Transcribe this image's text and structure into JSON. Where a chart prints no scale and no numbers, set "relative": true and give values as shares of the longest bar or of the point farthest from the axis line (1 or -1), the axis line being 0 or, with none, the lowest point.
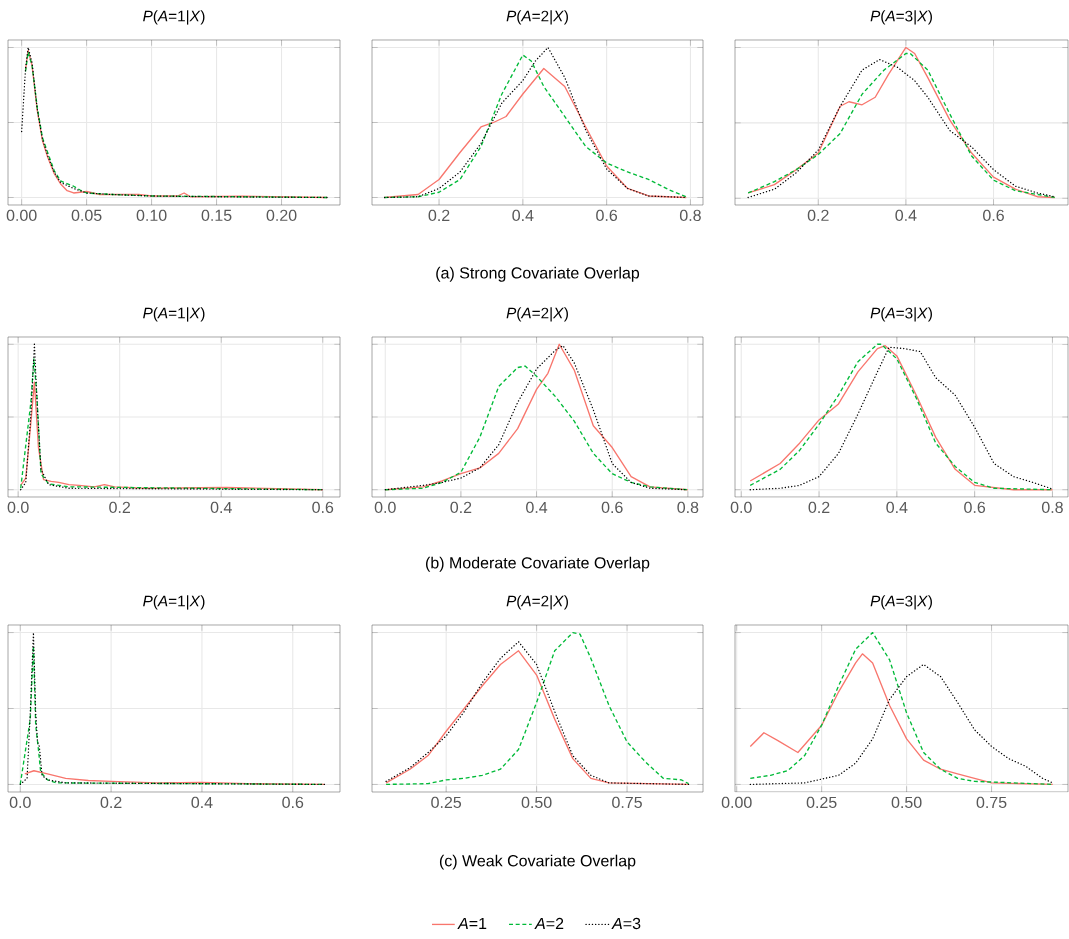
{
  "chart_data": [
    {
      "type": "line",
      "title": "*P*(*A*=1|*X*)",
      "relative": true,
      "grid": true,
      "xlim": [
        -0.0105,
        0.245
      ],
      "xticks": [
        {
          "value": 0,
          "label": "0.00"
        },
        {
          "value": 0.05,
          "label": "0.05"
        },
        {
          "value": 0.1,
          "label": "0.10"
        },
        {
          "value": 0.15,
          "label": "0.15"
        },
        {
          "value": 0.2,
          "label": "0.20"
        }
      ],
      "series": [
        {
          "color": "#f8766d",
          "line_style": "solid",
          "x": [
            0.003,
            0.005,
            0.008,
            0.012,
            0.016,
            0.02,
            0.025,
            0.03,
            0.035,
            0.04,
            0.05,
            0.06,
            0.07,
            0.09,
            0.1,
            0.12,
            0.125,
            0.13,
            0.17,
            0.235
          ],
          "values": [
            0.85,
            0.98,
            0.88,
            0.58,
            0.38,
            0.27,
            0.16,
            0.09,
            0.045,
            0.03,
            0.04,
            0.02,
            0.02,
            0.02,
            0.01,
            0.01,
            0.03,
            0.005,
            0.008,
            0
          ]
        },
        {
          "color": "#00ba38",
          "line_style": "dashed",
          "x": [
            0.003,
            0.005,
            0.008,
            0.012,
            0.016,
            0.02,
            0.025,
            0.03,
            0.04,
            0.045,
            0.05,
            0.07,
            0.1,
            0.235
          ],
          "values": [
            0.84,
            0.97,
            0.88,
            0.6,
            0.4,
            0.3,
            0.18,
            0.11,
            0.075,
            0.05,
            0.03,
            0.02,
            0.01,
            0
          ]
        },
        {
          "color": "#000000",
          "line_style": "dotted",
          "x": [
            0,
            0.003,
            0.005,
            0.008,
            0.012,
            0.016,
            0.02,
            0.025,
            0.03,
            0.04,
            0.05,
            0.07,
            0.1,
            0.15,
            0.235
          ],
          "values": [
            0.44,
            0.86,
            1.0,
            0.9,
            0.59,
            0.39,
            0.28,
            0.17,
            0.1,
            0.06,
            0.03,
            0.02,
            0.01,
            0.005,
            0
          ]
        }
      ]
    },
    {
      "type": "line",
      "title": "*P*(*A*=2|*X*)",
      "relative": true,
      "grid": true,
      "xlim": [
        0.04,
        0.83
      ],
      "xticks": [
        {
          "value": 0.2,
          "label": "0.2"
        },
        {
          "value": 0.4,
          "label": "0.4"
        },
        {
          "value": 0.6,
          "label": "0.6"
        },
        {
          "value": 0.8,
          "label": "0.8"
        }
      ],
      "annotations": [
        "(a) Strong Covariate Overlap"
      ],
      "series": [
        {
          "color": "#f8766d",
          "line_style": "solid",
          "x": [
            0.07,
            0.15,
            0.2,
            0.25,
            0.3,
            0.33,
            0.36,
            0.4,
            0.45,
            0.5,
            0.55,
            0.6,
            0.65,
            0.7,
            0.79
          ],
          "values": [
            0,
            0.02,
            0.12,
            0.3,
            0.47,
            0.5,
            0.54,
            0.69,
            0.86,
            0.74,
            0.47,
            0.21,
            0.06,
            0.01,
            0
          ]
        },
        {
          "color": "#00ba38",
          "line_style": "dashed",
          "x": [
            0.07,
            0.15,
            0.2,
            0.25,
            0.3,
            0.35,
            0.4,
            0.42,
            0.45,
            0.5,
            0.55,
            0.6,
            0.65,
            0.7,
            0.75,
            0.79
          ],
          "values": [
            0,
            0.005,
            0.035,
            0.12,
            0.34,
            0.69,
            0.95,
            0.91,
            0.74,
            0.54,
            0.34,
            0.23,
            0.17,
            0.12,
            0.05,
            0.005
          ]
        },
        {
          "color": "#000000",
          "line_style": "dotted",
          "x": [
            0.07,
            0.15,
            0.2,
            0.25,
            0.3,
            0.35,
            0.4,
            0.43,
            0.46,
            0.5,
            0.55,
            0.6,
            0.65,
            0.7,
            0.79
          ],
          "values": [
            0,
            0.005,
            0.06,
            0.17,
            0.36,
            0.63,
            0.78,
            0.91,
            1.0,
            0.8,
            0.45,
            0.19,
            0.06,
            0.01,
            0
          ]
        }
      ]
    },
    {
      "type": "line",
      "title": "*P*(*A*=3|*X*)",
      "relative": true,
      "grid": true,
      "xlim": [
        0.01,
        0.77
      ],
      "xticks": [
        {
          "value": 0.2,
          "label": "0.2"
        },
        {
          "value": 0.4,
          "label": "0.4"
        },
        {
          "value": 0.6,
          "label": "0.6"
        }
      ],
      "series": [
        {
          "color": "#f8766d",
          "line_style": "solid",
          "x": [
            0.04,
            0.1,
            0.15,
            0.2,
            0.25,
            0.27,
            0.3,
            0.33,
            0.36,
            0.4,
            0.42,
            0.45,
            0.5,
            0.55,
            0.6,
            0.65,
            0.7,
            0.74
          ],
          "values": [
            0.035,
            0.09,
            0.19,
            0.3,
            0.61,
            0.64,
            0.62,
            0.67,
            0.82,
            1.0,
            0.96,
            0.8,
            0.52,
            0.3,
            0.14,
            0.06,
            0.01,
            0.005
          ]
        },
        {
          "color": "#00ba38",
          "line_style": "dashed",
          "x": [
            0.04,
            0.1,
            0.15,
            0.2,
            0.25,
            0.3,
            0.35,
            0.4,
            0.41,
            0.45,
            0.5,
            0.55,
            0.6,
            0.65,
            0.74
          ],
          "values": [
            0.035,
            0.11,
            0.19,
            0.29,
            0.43,
            0.69,
            0.85,
            0.96,
            0.96,
            0.85,
            0.56,
            0.28,
            0.12,
            0.05,
            0.005
          ]
        },
        {
          "color": "#000000",
          "line_style": "dotted",
          "x": [
            0.04,
            0.1,
            0.15,
            0.2,
            0.25,
            0.3,
            0.34,
            0.38,
            0.42,
            0.45,
            0.5,
            0.55,
            0.6,
            0.65,
            0.7,
            0.74
          ],
          "values": [
            0.005,
            0.06,
            0.17,
            0.32,
            0.61,
            0.85,
            0.92,
            0.87,
            0.78,
            0.67,
            0.45,
            0.34,
            0.19,
            0.08,
            0.035,
            0.01
          ]
        }
      ]
    },
    {
      "type": "line",
      "title": "*P*(*A*=1|*X*)",
      "relative": true,
      "grid": true,
      "xlim": [
        -0.02,
        0.634
      ],
      "xticks": [
        {
          "value": 0,
          "label": "0.0"
        },
        {
          "value": 0.2,
          "label": "0.2"
        },
        {
          "value": 0.4,
          "label": "0.4"
        },
        {
          "value": 0.6,
          "label": "0.6"
        }
      ],
      "series": [
        {
          "color": "#f8766d",
          "line_style": "solid",
          "x": [
            0.005,
            0.015,
            0.025,
            0.032,
            0.04,
            0.05,
            0.065,
            0.08,
            0.1,
            0.12,
            0.15,
            0.17,
            0.19,
            0.25,
            0.41,
            0.6
          ],
          "values": [
            0.03,
            0.08,
            0.46,
            0.74,
            0.29,
            0.07,
            0.057,
            0.05,
            0.035,
            0.03,
            0.02,
            0.035,
            0.02,
            0.01,
            0.015,
            0
          ]
        },
        {
          "color": "#00ba38",
          "line_style": "dashed",
          "x": [
            0.005,
            0.025,
            0.031,
            0.037,
            0.045,
            0.06,
            0.1,
            0.6
          ],
          "values": [
            0.01,
            0.6,
            0.9,
            0.64,
            0.11,
            0.04,
            0.02,
            0
          ]
        },
        {
          "color": "#000000",
          "line_style": "dotted",
          "x": [
            0.005,
            0.015,
            0.025,
            0.032,
            0.038,
            0.045,
            0.06,
            0.1,
            0.6
          ],
          "values": [
            0,
            0.05,
            0.51,
            1.0,
            0.55,
            0.14,
            0.035,
            0.01,
            0
          ]
        }
      ]
    },
    {
      "type": "line",
      "title": "*P*(*A*=2|*X*)",
      "relative": true,
      "grid": true,
      "xlim": [
        -0.035,
        0.84
      ],
      "xticks": [
        {
          "value": 0,
          "label": "0.0"
        },
        {
          "value": 0.2,
          "label": "0.2"
        },
        {
          "value": 0.4,
          "label": "0.4"
        },
        {
          "value": 0.6,
          "label": "0.6"
        },
        {
          "value": 0.8,
          "label": "0.8"
        }
      ],
      "annotations": [
        "(b) Moderate Covariate Overlap"
      ],
      "series": [
        {
          "color": "#f8766d",
          "line_style": "solid",
          "x": [
            0,
            0.1,
            0.15,
            0.2,
            0.25,
            0.3,
            0.35,
            0.4,
            0.43,
            0.46,
            0.5,
            0.55,
            0.6,
            0.65,
            0.7,
            0.8
          ],
          "values": [
            0,
            0.02,
            0.06,
            0.11,
            0.15,
            0.25,
            0.42,
            0.69,
            0.8,
            1.0,
            0.82,
            0.44,
            0.29,
            0.09,
            0.02,
            0
          ]
        },
        {
          "color": "#00ba38",
          "line_style": "dashed",
          "x": [
            0,
            0.1,
            0.15,
            0.2,
            0.25,
            0.3,
            0.35,
            0.37,
            0.4,
            0.45,
            0.5,
            0.55,
            0.6,
            0.65,
            0.7,
            0.8
          ],
          "values": [
            0,
            0.01,
            0.05,
            0.12,
            0.36,
            0.71,
            0.84,
            0.85,
            0.78,
            0.64,
            0.47,
            0.25,
            0.11,
            0.05,
            0.02,
            0
          ]
        },
        {
          "color": "#000000",
          "line_style": "dotted",
          "x": [
            0,
            0.1,
            0.15,
            0.2,
            0.25,
            0.3,
            0.35,
            0.4,
            0.45,
            0.47,
            0.5,
            0.55,
            0.6,
            0.65,
            0.7,
            0.8
          ],
          "values": [
            0,
            0.03,
            0.05,
            0.08,
            0.15,
            0.31,
            0.6,
            0.83,
            0.96,
            0.99,
            0.87,
            0.55,
            0.18,
            0.05,
            0.01,
            0
          ]
        }
      ]
    },
    {
      "type": "line",
      "title": "*P*(*A*=3|*X*)",
      "relative": true,
      "grid": true,
      "xlim": [
        -0.016,
        0.84
      ],
      "xticks": [
        {
          "value": 0,
          "label": "0.0"
        },
        {
          "value": 0.2,
          "label": "0.2"
        },
        {
          "value": 0.4,
          "label": "0.4"
        },
        {
          "value": 0.6,
          "label": "0.6"
        },
        {
          "value": 0.8,
          "label": "0.8"
        }
      ],
      "series": [
        {
          "color": "#f8766d",
          "line_style": "solid",
          "x": [
            0.023,
            0.1,
            0.15,
            0.2,
            0.25,
            0.3,
            0.35,
            0.37,
            0.4,
            0.45,
            0.5,
            0.55,
            0.6,
            0.7,
            0.8
          ],
          "values": [
            0.06,
            0.18,
            0.32,
            0.48,
            0.59,
            0.81,
            0.97,
            0.99,
            0.92,
            0.65,
            0.36,
            0.14,
            0.03,
            0,
            0
          ]
        },
        {
          "color": "#00ba38",
          "line_style": "dashed",
          "x": [
            0.023,
            0.1,
            0.15,
            0.2,
            0.25,
            0.3,
            0.35,
            0.36,
            0.4,
            0.45,
            0.5,
            0.55,
            0.6,
            0.65,
            0.8
          ],
          "values": [
            0.03,
            0.14,
            0.27,
            0.45,
            0.65,
            0.88,
            1.0,
            1.0,
            0.9,
            0.63,
            0.32,
            0.16,
            0.05,
            0.01,
            0
          ]
        },
        {
          "color": "#000000",
          "line_style": "dotted",
          "x": [
            0.023,
            0.1,
            0.15,
            0.2,
            0.25,
            0.3,
            0.35,
            0.38,
            0.42,
            0.46,
            0.5,
            0.55,
            0.6,
            0.65,
            0.7,
            0.75,
            0.8
          ],
          "values": [
            0,
            0.01,
            0.03,
            0.09,
            0.25,
            0.52,
            0.81,
            0.98,
            0.97,
            0.95,
            0.77,
            0.65,
            0.43,
            0.18,
            0.09,
            0.05,
            0.005
          ]
        }
      ]
    },
    {
      "type": "line",
      "title": "*P*(*A*=1|*X*)",
      "relative": true,
      "grid": true,
      "xlim": [
        -0.027,
        0.704
      ],
      "xticks": [
        {
          "value": 0,
          "label": "0.0"
        },
        {
          "value": 0.2,
          "label": "0.2"
        },
        {
          "value": 0.4,
          "label": "0.4"
        },
        {
          "value": 0.6,
          "label": "0.6"
        }
      ],
      "series": [
        {
          "color": "#f8766d",
          "line_style": "solid",
          "x": [
            0.01,
            0.03,
            0.06,
            0.1,
            0.15,
            0.2,
            0.3,
            0.4,
            0.5,
            0.67
          ],
          "values": [
            0.07,
            0.09,
            0.07,
            0.04,
            0.026,
            0.02,
            0.01,
            0.013,
            0.005,
            0
          ]
        },
        {
          "color": "#00ba38",
          "line_style": "dashed",
          "x": [
            0,
            0.022,
            0.029,
            0.034,
            0.04,
            0.045,
            0.06,
            0.08,
            0.67
          ],
          "values": [
            0,
            0.43,
            0.91,
            0.39,
            0.23,
            0.08,
            0.03,
            0.01,
            0
          ]
        },
        {
          "color": "#000000",
          "line_style": "dotted",
          "x": [
            0,
            0.015,
            0.022,
            0.029,
            0.034,
            0.038,
            0.042,
            0.048,
            0.06,
            0.1,
            0.67
          ],
          "values": [
            0,
            0.04,
            0.47,
            1.0,
            0.47,
            0.28,
            0.25,
            0.06,
            0.03,
            0.01,
            0
          ]
        }
      ]
    },
    {
      "type": "line",
      "title": "*P*(*A*=2|*X*)",
      "relative": true,
      "grid": true,
      "xlim": [
        0.045,
        0.96
      ],
      "legend": "bottom",
      "xticks": [
        {
          "value": 0.25,
          "label": "0.25"
        },
        {
          "value": 0.5,
          "label": "0.50"
        },
        {
          "value": 0.75,
          "label": "0.75"
        }
      ],
      "annotations": [
        "(c) Weak Covariate Overlap"
      ],
      "series": [
        {
          "name": "*A*=1",
          "color": "#f8766d",
          "line_style": "solid",
          "x": [
            0.084,
            0.15,
            0.2,
            0.25,
            0.3,
            0.35,
            0.4,
            0.45,
            0.5,
            0.55,
            0.6,
            0.65,
            0.7,
            0.92
          ],
          "values": [
            0.01,
            0.1,
            0.19,
            0.35,
            0.5,
            0.65,
            0.79,
            0.88,
            0.72,
            0.43,
            0.17,
            0.04,
            0.01,
            0
          ]
        },
        {
          "name": "*A*=2",
          "color": "#00ba38",
          "line_style": "dashed",
          "x": [
            0.084,
            0.2,
            0.25,
            0.3,
            0.35,
            0.4,
            0.45,
            0.5,
            0.55,
            0.6,
            0.62,
            0.65,
            0.7,
            0.75,
            0.8,
            0.85,
            0.9,
            0.92
          ],
          "values": [
            0,
            0.005,
            0.03,
            0.04,
            0.06,
            0.1,
            0.23,
            0.54,
            0.88,
            1.0,
            0.99,
            0.83,
            0.52,
            0.28,
            0.15,
            0.04,
            0.03,
            0.005
          ]
        },
        {
          "name": "*A*=3",
          "color": "#000000",
          "line_style": "dotted",
          "x": [
            0.084,
            0.15,
            0.2,
            0.25,
            0.3,
            0.35,
            0.4,
            0.45,
            0.5,
            0.55,
            0.6,
            0.65,
            0.7,
            0.92
          ],
          "values": [
            0.02,
            0.11,
            0.21,
            0.32,
            0.48,
            0.67,
            0.83,
            0.94,
            0.79,
            0.48,
            0.19,
            0.06,
            0.01,
            0
          ]
        }
      ]
    },
    {
      "type": "line",
      "title": "*P*(*A*=3|*X*)",
      "relative": true,
      "grid": true,
      "xlim": [
        -0.005,
        0.975
      ],
      "xticks": [
        {
          "value": 0,
          "label": "0.00"
        },
        {
          "value": 0.25,
          "label": "0.25"
        },
        {
          "value": 0.5,
          "label": "0.50"
        },
        {
          "value": 0.75,
          "label": "0.75"
        }
      ],
      "series": [
        {
          "color": "#f8766d",
          "line_style": "solid",
          "x": [
            0.04,
            0.08,
            0.12,
            0.18,
            0.25,
            0.3,
            0.35,
            0.37,
            0.4,
            0.45,
            0.5,
            0.55,
            0.6,
            0.65,
            0.7,
            0.75,
            0.93
          ],
          "values": [
            0.25,
            0.34,
            0.29,
            0.21,
            0.39,
            0.61,
            0.8,
            0.86,
            0.8,
            0.52,
            0.3,
            0.16,
            0.1,
            0.07,
            0.04,
            0.01,
            0
          ]
        },
        {
          "color": "#00ba38",
          "line_style": "dashed",
          "x": [
            0.04,
            0.1,
            0.15,
            0.2,
            0.25,
            0.3,
            0.35,
            0.4,
            0.45,
            0.5,
            0.55,
            0.6,
            0.65,
            0.7,
            0.93
          ],
          "values": [
            0.04,
            0.06,
            0.09,
            0.19,
            0.39,
            0.65,
            0.89,
            1.0,
            0.82,
            0.47,
            0.21,
            0.1,
            0.04,
            0.02,
            0
          ]
        },
        {
          "color": "#000000",
          "line_style": "dotted",
          "x": [
            0.04,
            0.2,
            0.3,
            0.35,
            0.4,
            0.45,
            0.5,
            0.55,
            0.6,
            0.65,
            0.7,
            0.75,
            0.8,
            0.85,
            0.9,
            0.93
          ],
          "values": [
            0,
            0.01,
            0.06,
            0.14,
            0.3,
            0.56,
            0.71,
            0.79,
            0.71,
            0.54,
            0.36,
            0.25,
            0.17,
            0.12,
            0.04,
            0.01
          ]
        }
      ]
    }
  ]
}
